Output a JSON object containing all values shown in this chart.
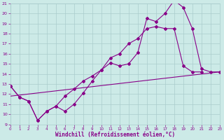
{
  "xlabel": "Windchill (Refroidissement éolien,°C)",
  "bg_color": "#cceae7",
  "grid_color": "#aacccc",
  "line_color": "#880088",
  "xmin": 0,
  "xmax": 23,
  "ymin": 9,
  "ymax": 21,
  "yticks": [
    9,
    10,
    11,
    12,
    13,
    14,
    15,
    16,
    17,
    18,
    19,
    20,
    21
  ],
  "xticks": [
    0,
    1,
    2,
    3,
    4,
    5,
    6,
    7,
    8,
    9,
    10,
    11,
    12,
    13,
    14,
    15,
    16,
    17,
    18,
    19,
    20,
    21,
    22,
    23
  ],
  "line1_x": [
    0,
    1,
    2,
    3,
    4,
    5,
    6,
    7,
    8,
    9,
    10,
    11,
    12,
    13,
    14,
    15,
    16,
    17,
    18,
    19,
    20,
    21,
    22,
    23
  ],
  "line1_y": [
    12.8,
    11.7,
    11.3,
    9.4,
    10.3,
    10.8,
    10.3,
    11.0,
    12.1,
    13.3,
    14.4,
    15.1,
    14.8,
    15.0,
    16.1,
    19.5,
    19.2,
    20.0,
    21.3,
    20.6,
    18.5,
    14.5,
    14.2,
    14.2
  ],
  "line2_x": [
    0,
    1,
    2,
    3,
    4,
    5,
    6,
    7,
    8,
    9,
    10,
    11,
    12,
    13,
    14,
    15,
    16,
    17,
    18,
    19,
    20,
    21
  ],
  "line2_y": [
    12.8,
    11.7,
    11.3,
    9.4,
    10.3,
    10.8,
    11.8,
    12.5,
    13.3,
    13.8,
    14.4,
    15.6,
    16.0,
    17.0,
    17.5,
    18.5,
    18.7,
    18.5,
    18.5,
    14.8,
    14.2,
    14.2
  ],
  "line3_x": [
    0,
    23
  ],
  "line3_y": [
    11.8,
    14.2
  ]
}
